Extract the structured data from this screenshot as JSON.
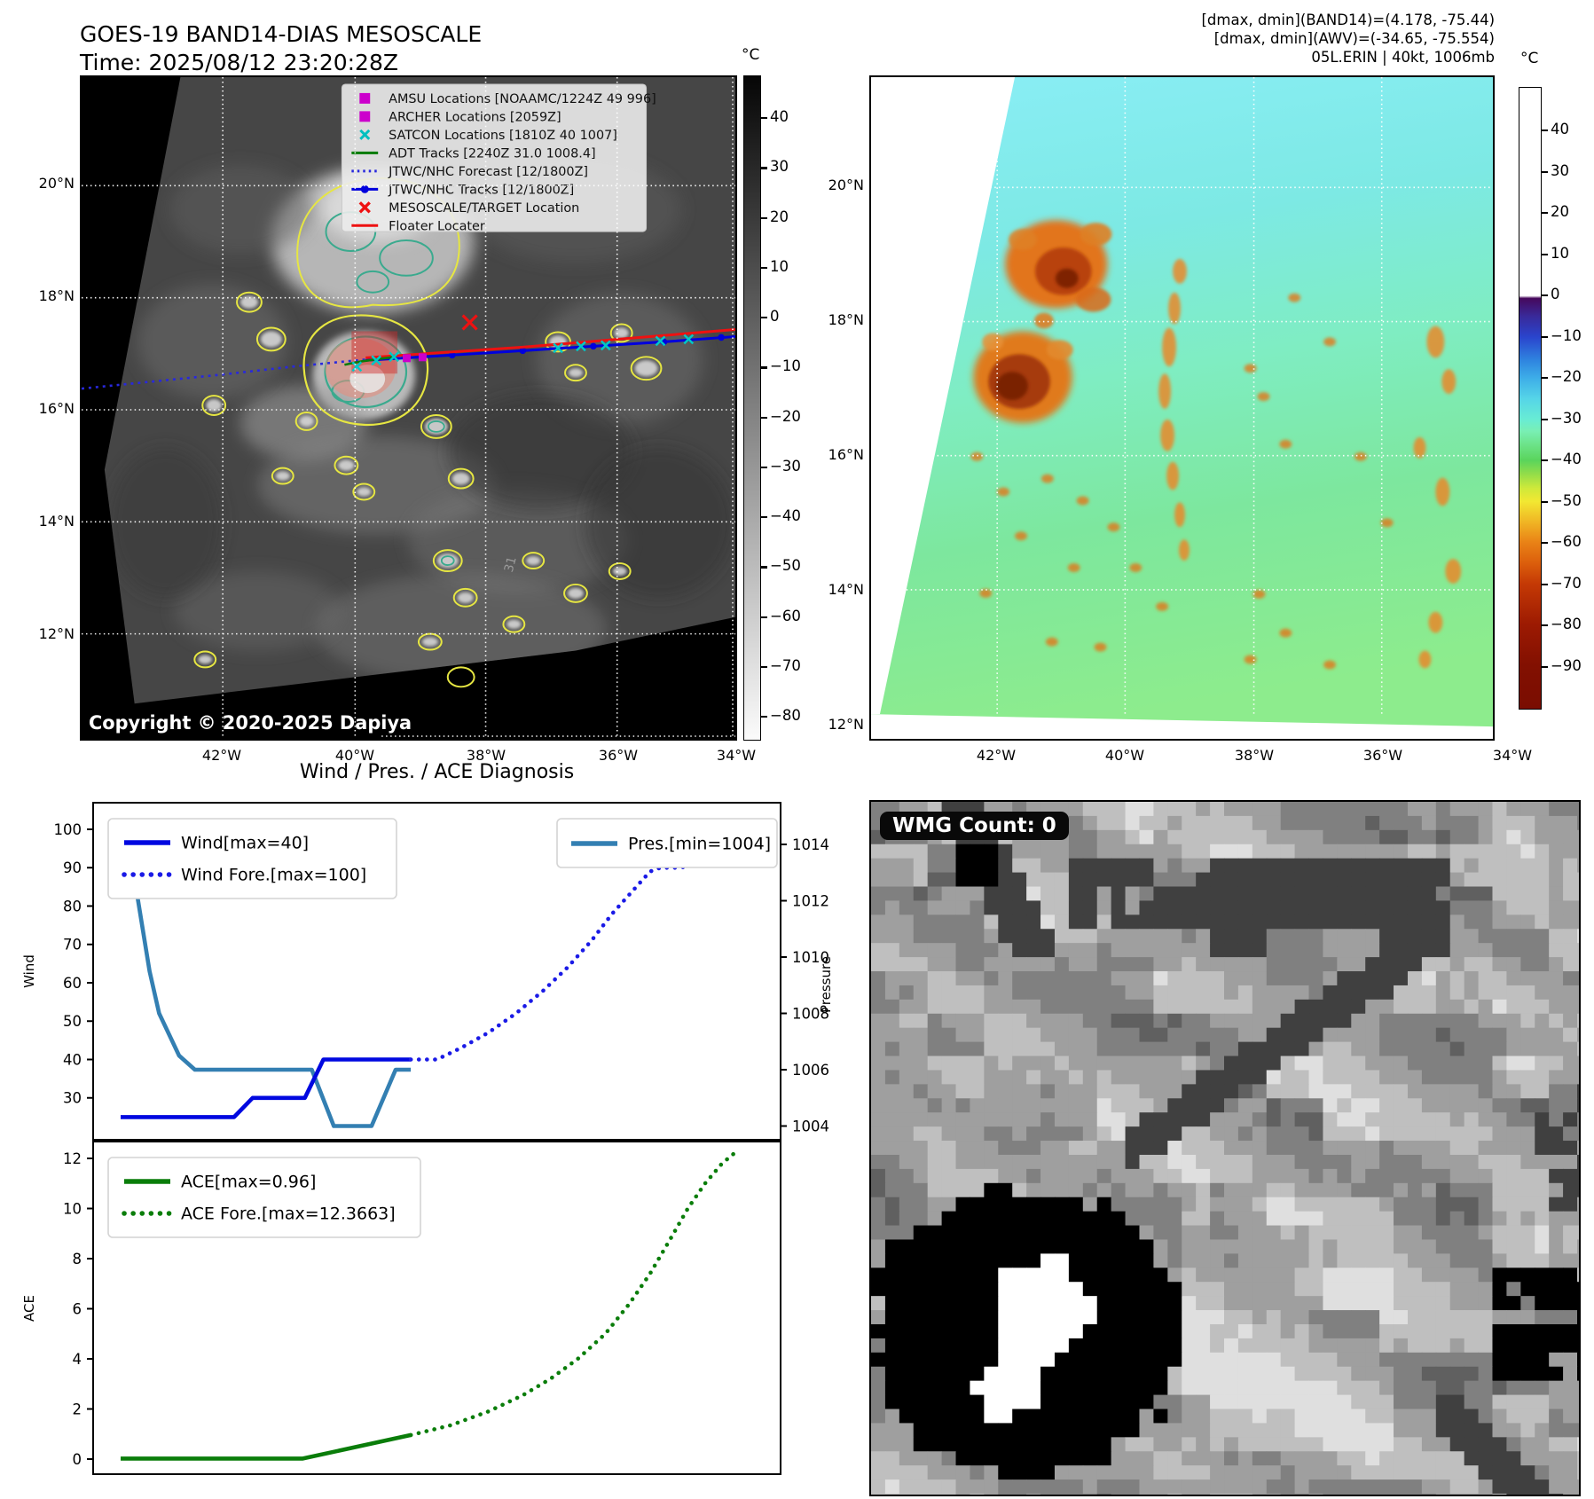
{
  "title": "GOES-19 BAND14-DIAS MESOSCALE",
  "subtitle": "Time: 2025/08/12 23:20:28Z",
  "stats": {
    "line1": "[dmax, dmin](BAND14)=(4.178, -75.44)",
    "line2": "[dmax, dmin](AWV)=(-34.65, -75.554)",
    "line3": "05L.ERIN | 40kt, 1006mb"
  },
  "left_map": {
    "legend": [
      {
        "marker": "square",
        "color": "#cc00cc",
        "label": "AMSU Locations [NOAAMC/1224Z 49 996]"
      },
      {
        "marker": "square",
        "color": "#cc00cc",
        "label": "ARCHER Locations [2059Z]"
      },
      {
        "marker": "x",
        "color": "#00bfbf",
        "label": "SATCON Locations [1810Z 40 1007]"
      },
      {
        "marker": "line",
        "color": "#007a00",
        "label": "ADT Tracks [2240Z 31.0 1008.4]"
      },
      {
        "marker": "dotted-line",
        "color": "#2828dd",
        "label": "JTWC/NHC Forecast [12/1800Z]"
      },
      {
        "marker": "line-dot",
        "color": "#0000dd",
        "label": "JTWC/NHC Tracks [12/1800Z]"
      },
      {
        "marker": "x",
        "color": "#ee1111",
        "label": "MESOSCALE/TARGET Location"
      },
      {
        "marker": "line",
        "color": "#ee1111",
        "label": "Floater Locater"
      }
    ],
    "copyright": "Copyright © 2020-2025 Dapiya",
    "annotation": "31",
    "lat_ticks": [
      "20°N",
      "18°N",
      "16°N",
      "14°N",
      "12°N"
    ],
    "lon_ticks": [
      "42°W",
      "40°W",
      "38°W",
      "36°W",
      "34°W"
    ],
    "colorbar": {
      "unit": "°C",
      "ticks": [
        "40",
        "30",
        "20",
        "10",
        "0",
        "−10",
        "−20",
        "−30",
        "−40",
        "−50",
        "−60",
        "−70",
        "−80"
      ]
    }
  },
  "right_map": {
    "lat_ticks": [
      "20°N",
      "18°N",
      "16°N",
      "14°N",
      "12°N"
    ],
    "lon_ticks": [
      "42°W",
      "40°W",
      "38°W",
      "36°W",
      "34°W"
    ],
    "colorbar": {
      "unit": "°C",
      "ticks": [
        "40",
        "30",
        "20",
        "10",
        "0",
        "−10",
        "−20",
        "−30",
        "−40",
        "−50",
        "−60",
        "−70",
        "−80",
        "−90"
      ]
    }
  },
  "wmg": {
    "label": "WMG Count: 0"
  },
  "chart_data": [
    {
      "type": "line",
      "title": "Wind / Pres. / ACE Diagnosis",
      "ylabel": "Wind",
      "y2label": "Pressure",
      "ylim": [
        21,
        103
      ],
      "y2lim": [
        1003.3,
        1015.3
      ],
      "xlim": [
        0,
        1
      ],
      "yticks": [
        100,
        90,
        80,
        70,
        60,
        50,
        40,
        30
      ],
      "y2ticks": [
        1014,
        1012,
        1010,
        1008,
        1006,
        1004
      ],
      "grid": false,
      "legend_position": "upper-left and upper-right",
      "series": [
        {
          "name": "Wind[max=40]",
          "axis": "y",
          "style": "solid",
          "color": "#0008e0",
          "points": [
            [
              0.04,
              25
            ],
            [
              0.205,
              25
            ],
            [
              0.232,
              30
            ],
            [
              0.308,
              30
            ],
            [
              0.335,
              40
            ],
            [
              0.462,
              40
            ]
          ]
        },
        {
          "name": "Wind Fore.[max=100]",
          "axis": "y",
          "style": "dotted",
          "color": "#1a1ae6",
          "points": [
            [
              0.462,
              40
            ],
            [
              0.5,
              40
            ],
            [
              0.535,
              43
            ],
            [
              0.575,
              47
            ],
            [
              0.615,
              52
            ],
            [
              0.655,
              58
            ],
            [
              0.69,
              64
            ],
            [
              0.725,
              71
            ],
            [
              0.755,
              78
            ],
            [
              0.775,
              82
            ],
            [
              0.795,
              86
            ],
            [
              0.81,
              89
            ],
            [
              0.825,
              90
            ],
            [
              0.855,
              90
            ],
            [
              0.875,
              91
            ],
            [
              0.895,
              94
            ],
            [
              0.915,
              97
            ],
            [
              0.935,
              100
            ]
          ]
        },
        {
          "name": "Pres.[min=1004]",
          "axis": "y2",
          "style": "solid",
          "color": "#337fb2",
          "points": [
            [
              0.044,
              1014.9
            ],
            [
              0.062,
              1012.5
            ],
            [
              0.082,
              1009.5
            ],
            [
              0.096,
              1008
            ],
            [
              0.125,
              1006.5
            ],
            [
              0.148,
              1006
            ],
            [
              0.318,
              1006
            ],
            [
              0.35,
              1004
            ],
            [
              0.405,
              1004
            ],
            [
              0.44,
              1006
            ],
            [
              0.462,
              1006
            ]
          ]
        }
      ]
    },
    {
      "type": "line",
      "ylabel": "ACE",
      "ylim": [
        -0.65,
        12.9
      ],
      "xlim": [
        0,
        1
      ],
      "yticks": [
        12,
        10,
        8,
        6,
        4,
        2,
        0
      ],
      "grid": false,
      "legend_position": "upper-left",
      "series": [
        {
          "name": "ACE[max=0.96]",
          "style": "solid",
          "color": "#0a7d0a",
          "points": [
            [
              0.04,
              0.02
            ],
            [
              0.305,
              0.02
            ],
            [
              0.462,
              0.96
            ]
          ]
        },
        {
          "name": "ACE Fore.[max=12.3663]",
          "style": "dotted",
          "color": "#0a7d0a",
          "points": [
            [
              0.462,
              0.96
            ],
            [
              0.52,
              1.35
            ],
            [
              0.575,
              1.9
            ],
            [
              0.625,
              2.55
            ],
            [
              0.665,
              3.2
            ],
            [
              0.705,
              4.0
            ],
            [
              0.745,
              5.0
            ],
            [
              0.78,
              6.2
            ],
            [
              0.81,
              7.4
            ],
            [
              0.84,
              8.8
            ],
            [
              0.865,
              10.0
            ],
            [
              0.89,
              11.0
            ],
            [
              0.915,
              11.8
            ],
            [
              0.94,
              12.37
            ]
          ]
        }
      ]
    }
  ]
}
